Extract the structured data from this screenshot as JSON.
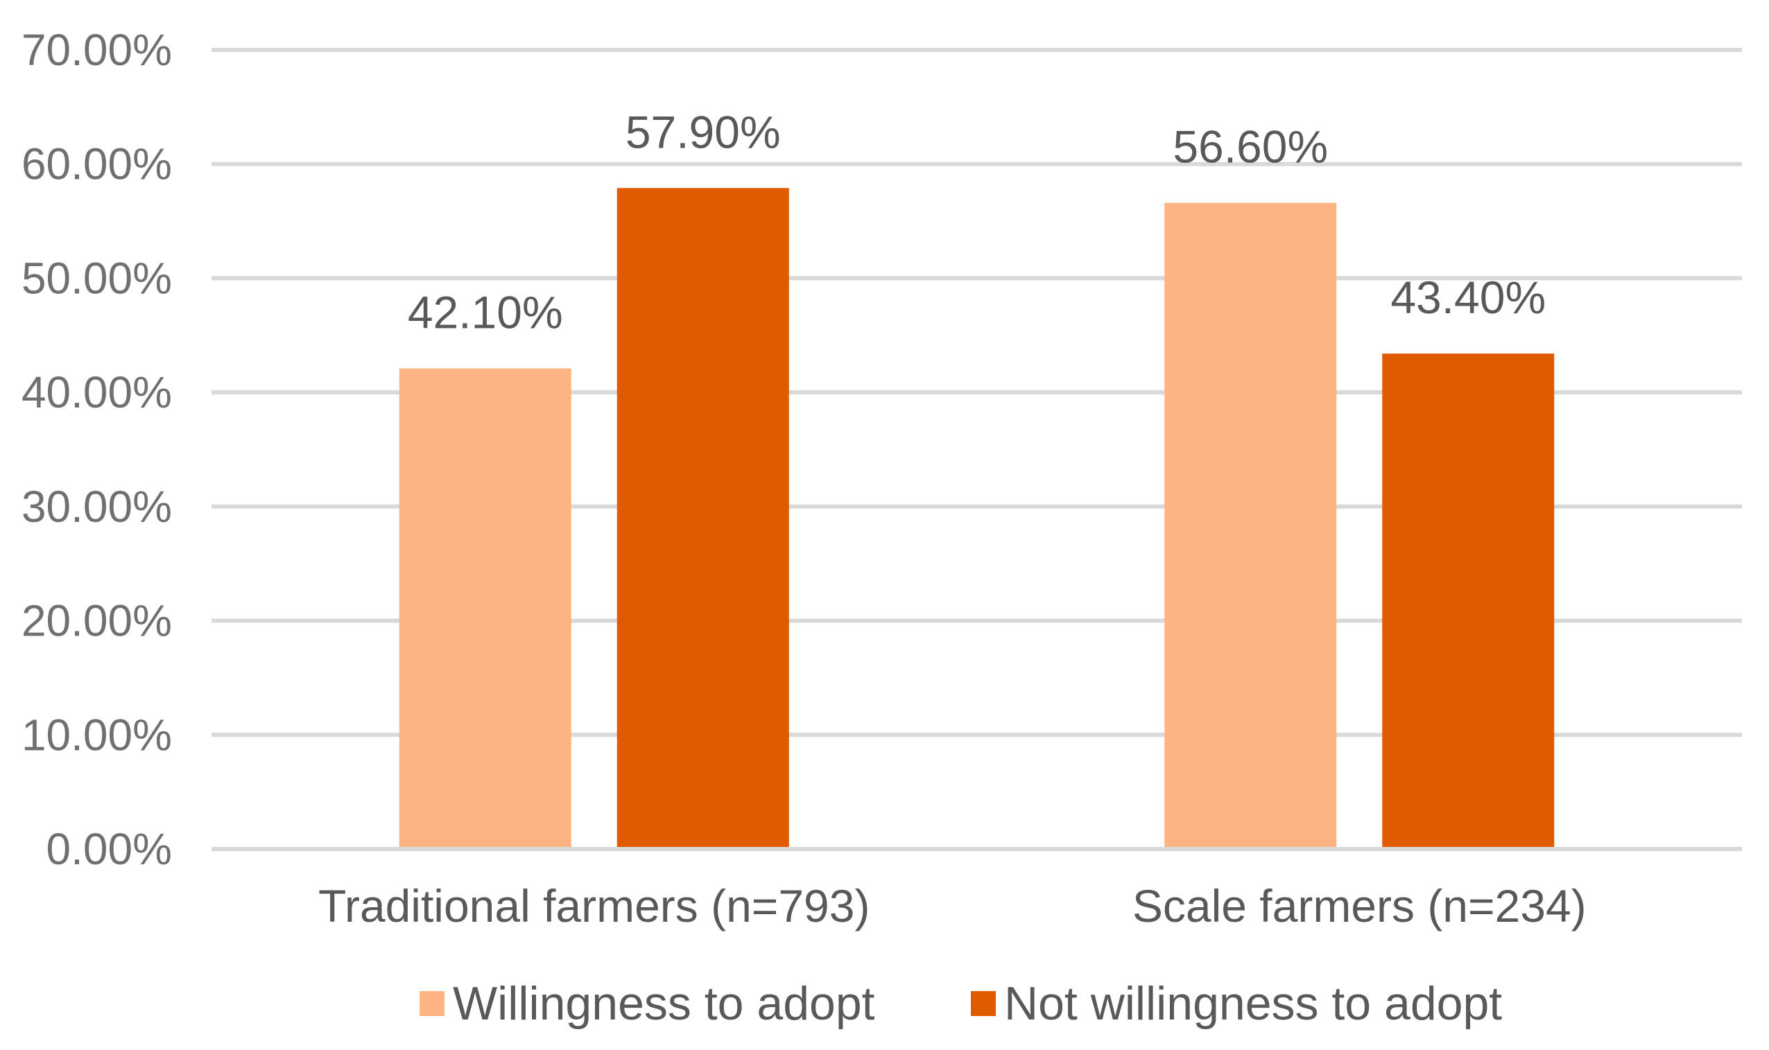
{
  "chart_data": {
    "type": "bar",
    "title": "",
    "xlabel": "",
    "ylabel": "",
    "categories": [
      "Traditional farmers (n=793)",
      "Scale farmers (n=234)"
    ],
    "series": [
      {
        "name": "Willingness to adopt",
        "color": "#fdb482",
        "values": [
          42.1,
          56.6
        ],
        "labels": [
          "42.10%",
          "56.60%"
        ]
      },
      {
        "name": "Not willingness to adopt",
        "color": "#e05a00",
        "values": [
          57.9,
          43.4
        ],
        "labels": [
          "57.90%",
          "43.40%"
        ]
      }
    ],
    "ylim": [
      0,
      70
    ],
    "yticks": [
      0,
      10,
      20,
      30,
      40,
      50,
      60,
      70
    ],
    "ytick_labels": [
      "0.00%",
      "10.00%",
      "20.00%",
      "30.00%",
      "40.00%",
      "50.00%",
      "60.00%",
      "70.00%"
    ],
    "grid": true,
    "legend_position": "bottom-center"
  }
}
